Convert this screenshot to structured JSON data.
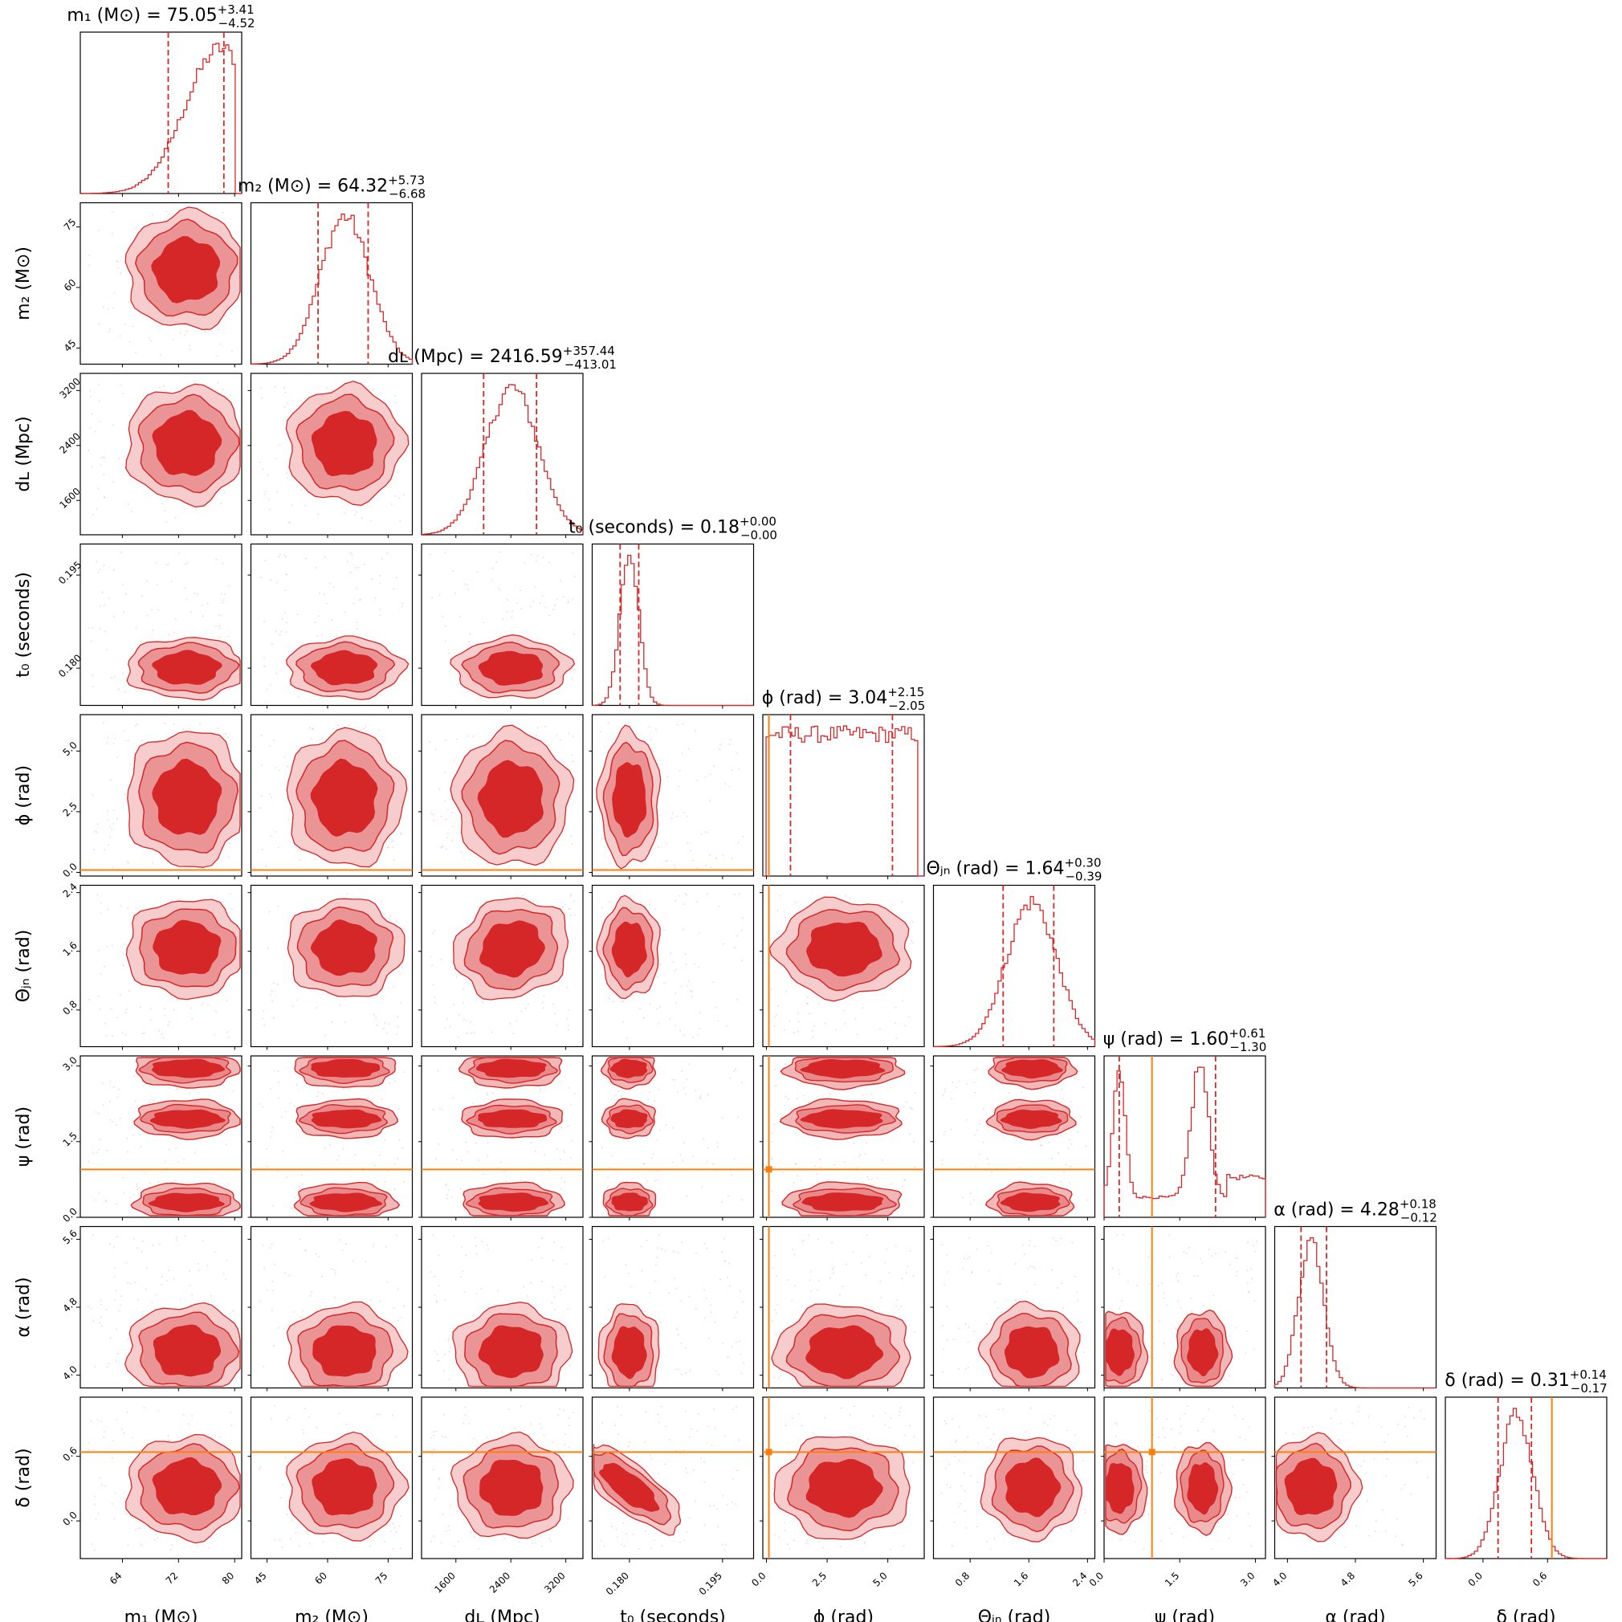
{
  "chart_data": {
    "type": "corner",
    "parameters": [
      {
        "key": "m1",
        "label": "m₁ (M⊙)",
        "title": "m₁ (M⊙) = 75.05",
        "median": 75.05,
        "plus": "+3.41",
        "minus": "−4.52",
        "range": [
          58,
          81
        ],
        "ticks": [
          64,
          72,
          80
        ],
        "truth": null
      },
      {
        "key": "m2",
        "label": "m₂ (M⊙)",
        "title": "m₂ (M⊙) = 64.32",
        "median": 64.32,
        "plus": "+5.73",
        "minus": "−6.68",
        "range": [
          41,
          81
        ],
        "ticks": [
          45,
          60,
          75
        ],
        "truth": null
      },
      {
        "key": "dL",
        "label": "dʟ (Mpc)",
        "title": "dʟ (Mpc) = 2416.59",
        "median": 2416.59,
        "plus": "+357.44",
        "minus": "−413.01",
        "range": [
          1100,
          3450
        ],
        "ticks": [
          1600,
          2400,
          3200
        ],
        "truth": null
      },
      {
        "key": "t0",
        "label": "t₀ (seconds)",
        "title": "t₀ (seconds) = 0.18",
        "median": 0.18,
        "plus": "+0.00",
        "minus": "−0.00",
        "range": [
          0.174,
          0.2
        ],
        "ticks": [
          0.18,
          0.195
        ],
        "tick_labels": [
          "0.180",
          "0.195"
        ],
        "truth": null
      },
      {
        "key": "phi",
        "label": "ϕ (rad)",
        "title": "ϕ (rad) = 3.04",
        "median": 3.04,
        "plus": "+2.15",
        "minus": "−2.05",
        "range": [
          -0.15,
          6.5
        ],
        "ticks": [
          0,
          2.5,
          5
        ],
        "tick_labels": [
          "0.0",
          "2.5",
          "5.0"
        ],
        "truth": 0.1
      },
      {
        "key": "theta",
        "label": "Θⱼₙ (rad)",
        "title": "Θⱼₙ (rad) = 1.64",
        "median": 1.64,
        "plus": "+0.30",
        "minus": "−0.39",
        "range": [
          0.3,
          2.5
        ],
        "ticks": [
          0.8,
          1.6,
          2.4
        ],
        "tick_labels": [
          "0.8",
          "1.6",
          "2.4"
        ],
        "truth": null
      },
      {
        "key": "psi",
        "label": "ψ (rad)",
        "title": "ψ (rad) = 1.60",
        "median": 1.6,
        "plus": "+0.61",
        "minus": "−1.30",
        "range": [
          0,
          3.2
        ],
        "ticks": [
          0,
          1.5,
          3
        ],
        "tick_labels": [
          "0.0",
          "1.5",
          "3.0"
        ],
        "truth": 0.95
      },
      {
        "key": "alpha",
        "label": "α (rad)",
        "title": "α (rad) = 4.28",
        "median": 4.28,
        "plus": "+0.18",
        "minus": "−0.12",
        "range": [
          3.85,
          5.75
        ],
        "ticks": [
          4.0,
          4.8,
          5.6
        ],
        "tick_labels": [
          "4.0",
          "4.8",
          "5.6"
        ],
        "truth": null
      },
      {
        "key": "delta",
        "label": "δ (rad)",
        "title": "δ (rad) = 0.31",
        "median": 0.31,
        "plus": "+0.14",
        "minus": "−0.17",
        "range": [
          -0.35,
          1.15
        ],
        "ticks": [
          0,
          0.6
        ],
        "tick_labels": [
          "0.0",
          "0.6"
        ],
        "truth": 0.64
      }
    ],
    "quantile_lines": [
      [
        70.53,
        78.46
      ],
      [
        57.64,
        70.05
      ],
      [
        2003.58,
        2774.03
      ],
      [
        0.1785,
        0.1815
      ],
      [
        0.99,
        5.19
      ],
      [
        1.25,
        1.94
      ],
      [
        0.3,
        2.21
      ],
      [
        4.16,
        4.46
      ],
      [
        0.14,
        0.45
      ]
    ],
    "legend": "none",
    "grid": false
  },
  "colors": {
    "posterior": "#d62728",
    "truth": "#ff7f0e",
    "axes": "#000000"
  }
}
